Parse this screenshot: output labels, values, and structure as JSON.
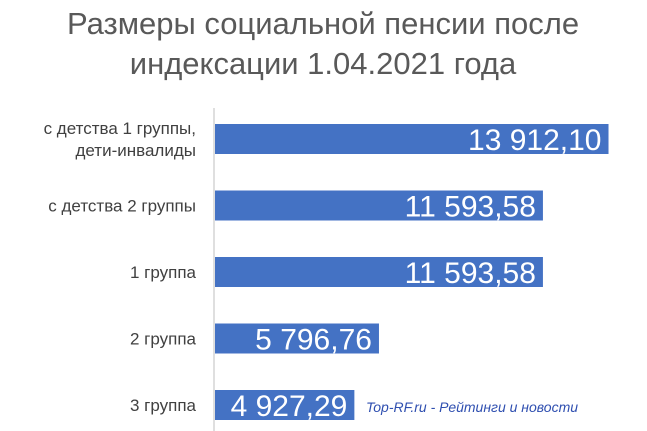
{
  "title_lines": [
    "Размеры социальной пенсии после",
    "индексации 1.04.2021 года"
  ],
  "watermark": "Top-RF.ru - Рейтинги и новости",
  "colors": {
    "bar": "#4472c4",
    "axis": "#bfbfbf",
    "title": "#595959",
    "label": "#404040",
    "watermark": "#2f4fb0"
  },
  "chart_data": {
    "type": "bar",
    "orientation": "horizontal",
    "title": "Размеры социальной пенсии после индексации 1.04.2021 года",
    "categories": [
      [
        "с детства 1 группы,",
        "дети-инвалиды"
      ],
      [
        "с детства 2 группы"
      ],
      [
        "1 группа"
      ],
      [
        "2 группа"
      ],
      [
        "3 группа"
      ]
    ],
    "values": [
      13912.1,
      11593.58,
      11593.58,
      5796.76,
      4927.29
    ],
    "data_labels": [
      "13 912,10",
      "11 593,58",
      "11 593,58",
      "5 796,76",
      "4 927,29"
    ],
    "xlim": [
      0,
      14000
    ],
    "grid": false,
    "legend": "none"
  }
}
